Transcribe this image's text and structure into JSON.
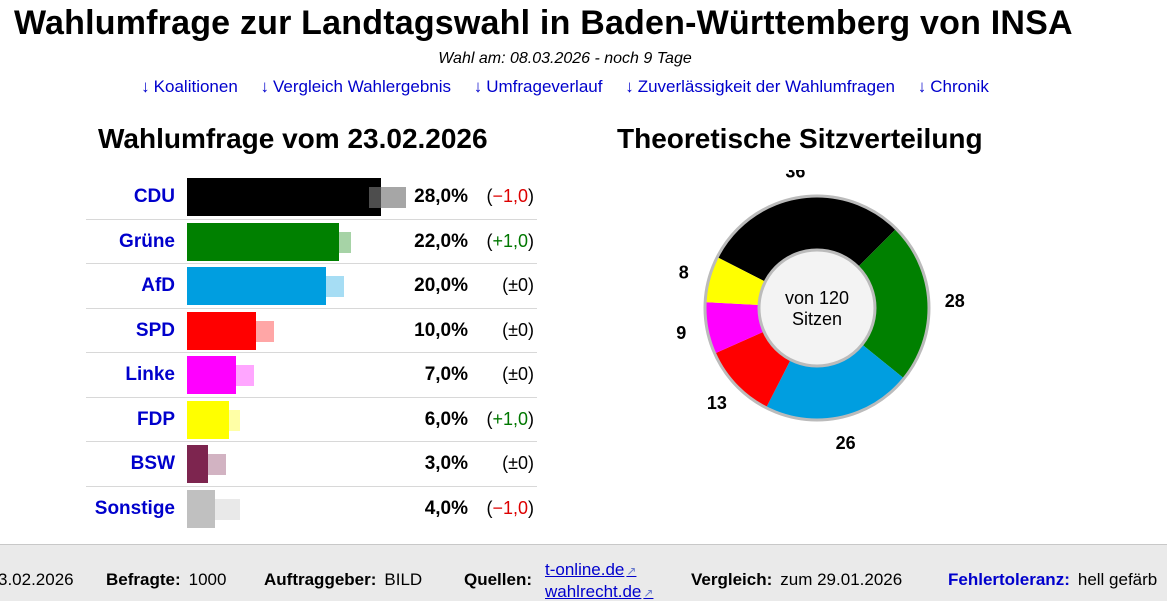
{
  "header": {
    "title": "Wahlumfrage zur Landtagswahl in Baden-Württemberg von INSA",
    "subtitle": "Wahl am: 08.03.2026 - noch 9 Tage"
  },
  "nav": {
    "arrow": "↓",
    "links": [
      "Koalitionen",
      "Vergleich Wahlergebnis",
      "Umfrageverlauf",
      "Zuverlässigkeit der Wahlumfragen",
      "Chronik"
    ]
  },
  "chart_data": [
    {
      "type": "bar",
      "title": "Wahlumfrage vom 23.02.2026",
      "categories": [
        "CDU",
        "Grüne",
        "AfD",
        "SPD",
        "Linke",
        "FDP",
        "BSW",
        "Sonstige"
      ],
      "values": [
        28.0,
        22.0,
        20.0,
        10.0,
        7.0,
        6.0,
        3.0,
        4.0
      ],
      "value_labels": [
        "28,0%",
        "22,0%",
        "20,0%",
        "10,0%",
        "7,0%",
        "6,0%",
        "3,0%",
        "4,0%"
      ],
      "previous_values": [
        29.0,
        21.0,
        20.0,
        10.0,
        7.0,
        5.0,
        3.0,
        5.0
      ],
      "changes": [
        "−1,0",
        "+1,0",
        "±0",
        "±0",
        "±0",
        "+1,0",
        "±0",
        "−1,0"
      ],
      "colors": [
        "#000000",
        "#008000",
        "#009ee0",
        "#ff0000",
        "#ff00ff",
        "#ffff00",
        "#7d254f",
        "#c0c0c0"
      ],
      "xlim": [
        0,
        28
      ]
    },
    {
      "type": "pie",
      "title": "Theoretische Sitzverteilung",
      "center_label": [
        "von 120",
        "Sitzen"
      ],
      "categories": [
        "CDU",
        "Grüne",
        "AfD",
        "SPD",
        "Linke",
        "FDP"
      ],
      "values": [
        36,
        28,
        26,
        13,
        9,
        8
      ],
      "colors": [
        "#000000",
        "#008000",
        "#009ee0",
        "#ff0000",
        "#ff00ff",
        "#ffff00"
      ]
    }
  ],
  "footer": {
    "date_partial": "3.02.2026",
    "befragte_label": "Befragte:",
    "befragte_value": "1000",
    "auftraggeber_label": "Auftraggeber:",
    "auftraggeber_value": "BILD",
    "quellen_label": "Quellen:",
    "sources": [
      "t-online.de",
      "wahlrecht.de"
    ],
    "ext_icon": "↗",
    "vergleich_label": "Vergleich:",
    "vergleich_value": "zum 29.01.2026",
    "fehlertoleranz_label": "Fehlertoleranz:",
    "fehlertoleranz_value": "hell gefärb"
  }
}
